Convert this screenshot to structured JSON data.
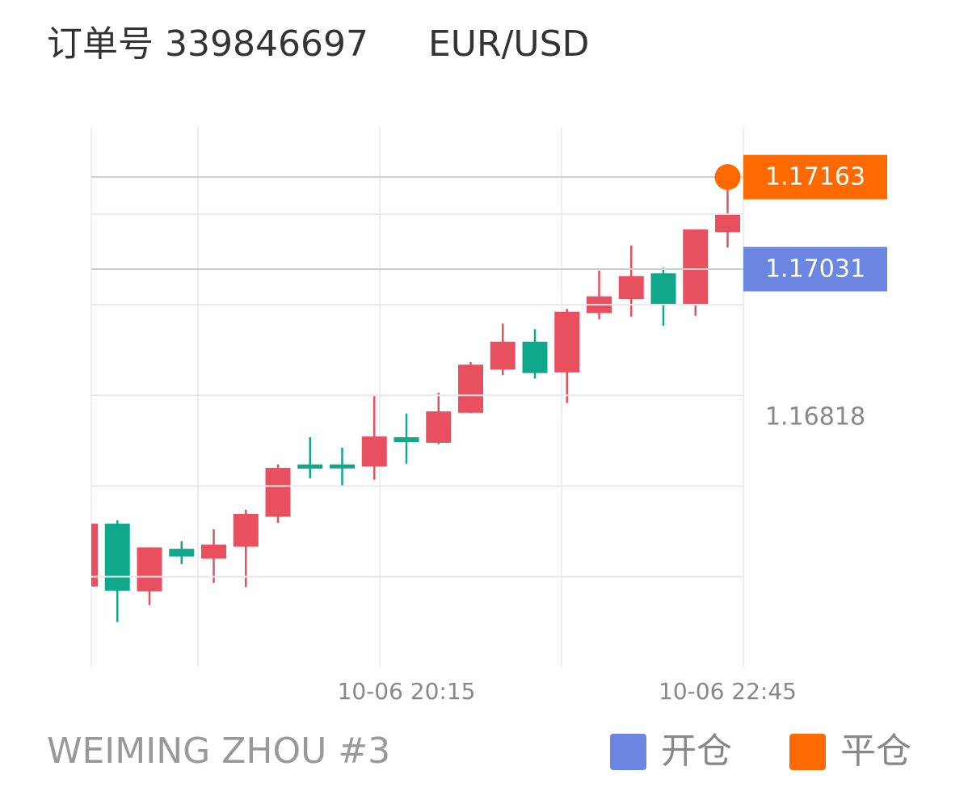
{
  "chart_data": {
    "type": "candlestick",
    "title": "订单号 339846697",
    "subtitle": "EUR/USD",
    "footer": "WEIMING ZHOU #3",
    "categories": [
      null,
      null,
      null,
      null,
      null,
      null,
      null,
      null,
      null,
      null,
      "10-06 20:15",
      null,
      null,
      null,
      null,
      null,
      null,
      null,
      null,
      null,
      "10-06 22:45"
    ],
    "open": [
      1.16576,
      1.16666,
      1.16569,
      1.1663,
      1.16616,
      1.16633,
      1.16676,
      1.16751,
      1.16751,
      1.16748,
      1.1679,
      1.16782,
      1.16825,
      1.16887,
      1.16927,
      1.16883,
      1.16968,
      1.16988,
      1.17025,
      1.16981,
      1.17084
    ],
    "high": [
      1.16666,
      1.16671,
      1.16632,
      1.16641,
      1.16658,
      1.16686,
      1.16751,
      1.1679,
      1.16775,
      1.16849,
      1.16824,
      1.16854,
      1.16898,
      1.16953,
      1.16945,
      1.16974,
      1.17029,
      1.17065,
      1.17033,
      1.17088,
      1.17145
    ],
    "low": [
      1.16576,
      1.16525,
      1.16549,
      1.16608,
      1.16581,
      1.16575,
      1.16667,
      1.16731,
      1.16721,
      1.16729,
      1.16752,
      1.1678,
      1.16825,
      1.16879,
      1.16874,
      1.16839,
      1.16959,
      1.16963,
      1.1695,
      1.16964,
      1.17062
    ],
    "close": [
      1.16666,
      1.1657,
      1.16632,
      1.16619,
      1.16636,
      1.1668,
      1.16746,
      1.16745,
      1.16746,
      1.16791,
      1.16783,
      1.16827,
      1.16894,
      1.16927,
      1.16882,
      1.1697,
      1.16992,
      1.17021,
      1.16981,
      1.17088,
      1.17111
    ],
    "up_color": "#e84f5f",
    "down_color": "#10a88a",
    "ylim": [
      1.16461,
      1.17235
    ],
    "ygrid": [
      1.1659,
      1.1672,
      1.1685,
      1.1698,
      1.1711
    ],
    "markers": [
      {
        "name": "开仓",
        "value": 1.17031,
        "color": "#6b86e0"
      },
      {
        "name": "平仓",
        "value": 1.17163,
        "color": "#ff6a00"
      }
    ],
    "price_label": 1.16818
  }
}
